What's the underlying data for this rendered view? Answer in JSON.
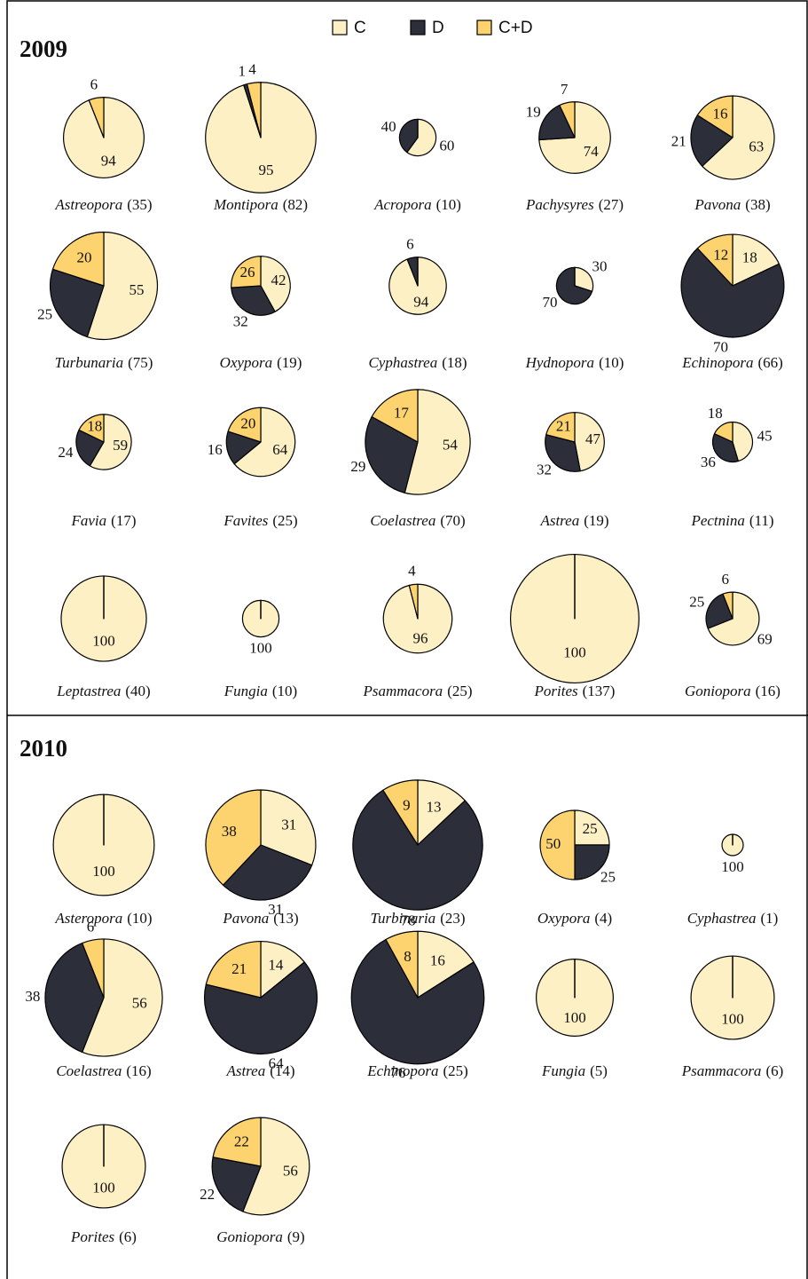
{
  "chart_data": {
    "type": "pie",
    "series_names": [
      "C",
      "D",
      "C+D"
    ],
    "colors": [
      "#fdf0c4",
      "#2c2f3a",
      "#fcd36e"
    ],
    "panels": [
      {
        "title": "2009",
        "pies": [
          {
            "title": "Astreopora",
            "n": 35,
            "n_label": "(35)",
            "values": [
              94,
              0,
              6
            ]
          },
          {
            "title": "Montipora",
            "n": 82,
            "n_label": "(82)",
            "values": [
              95,
              1,
              4
            ]
          },
          {
            "title": "Acropora",
            "n": 10,
            "n_label": "(10)",
            "values": [
              60,
              40,
              0
            ]
          },
          {
            "title": "Pachysyres",
            "n": 27,
            "n_label": "(27)",
            "values": [
              74,
              19,
              7
            ]
          },
          {
            "title": "Pavona",
            "n": 38,
            "n_label": "(38)",
            "values": [
              63,
              21,
              16
            ]
          },
          {
            "title": "Turbunaria",
            "n": 75,
            "n_label": "(75)",
            "values": [
              55,
              25,
              20
            ]
          },
          {
            "title": "Oxypora",
            "n": 19,
            "n_label": "(19)",
            "values": [
              42,
              32,
              26
            ]
          },
          {
            "title": "Cyphastrea",
            "n": 18,
            "n_label": "(18)",
            "values": [
              94,
              6,
              0
            ]
          },
          {
            "title": "Hydnopora",
            "n": 10,
            "n_label": "(10)",
            "values": [
              30,
              70,
              0
            ]
          },
          {
            "title": "Echinopora",
            "n": 66,
            "n_label": "(66)",
            "values": [
              18,
              70,
              12
            ]
          },
          {
            "title": "Favia",
            "n": 17,
            "n_label": "(17)",
            "values": [
              59,
              24,
              18
            ]
          },
          {
            "title": "Favites",
            "n": 25,
            "n_label": "(25)",
            "values": [
              64,
              16,
              20
            ]
          },
          {
            "title": "Coelastrea",
            "n": 70,
            "n_label": "(70)",
            "values": [
              54,
              29,
              17
            ]
          },
          {
            "title": "Astrea",
            "n": 19,
            "n_label": "(19)",
            "values": [
              47,
              32,
              21
            ]
          },
          {
            "title": "Pectnina",
            "n": 11,
            "n_label": "(11)",
            "values": [
              45,
              36,
              18
            ]
          },
          {
            "title": "Leptastrea",
            "n": 40,
            "n_label": "(40)",
            "values": [
              100,
              0,
              0
            ]
          },
          {
            "title": "Fungia",
            "n": 10,
            "n_label": "(10)",
            "values": [
              100,
              0,
              0
            ]
          },
          {
            "title": "Psammacora",
            "n": 25,
            "n_label": "(25)",
            "values": [
              96,
              0,
              4
            ]
          },
          {
            "title": "Porites",
            "n": 137,
            "n_label": "(137)",
            "values": [
              100,
              0,
              0
            ]
          },
          {
            "title": "Goniopora",
            "n": 16,
            "n_label": "(16)",
            "values": [
              69,
              25,
              6
            ]
          }
        ]
      },
      {
        "title": "2010",
        "pies": [
          {
            "title": "Asteropora",
            "n": 10,
            "n_label": "(10)",
            "values": [
              100,
              0,
              0
            ]
          },
          {
            "title": "Pavona",
            "n": 13,
            "n_label": "(13)",
            "values": [
              31,
              31,
              38
            ]
          },
          {
            "title": "Turbinaria",
            "n": 23,
            "n_label": "(23)",
            "values": [
              13,
              78,
              9
            ]
          },
          {
            "title": "Oxypora",
            "n": 4,
            "n_label": "(4)",
            "values": [
              25,
              25,
              50
            ]
          },
          {
            "title": "Cyphastrea",
            "n": 1,
            "n_label": "(1)",
            "values": [
              100,
              0,
              0
            ]
          },
          {
            "title": "Coelastrea",
            "n": 16,
            "n_label": "(16)",
            "values": [
              56,
              38,
              6
            ]
          },
          {
            "title": "Astrea",
            "n": 14,
            "n_label": "(14)",
            "values": [
              14,
              64,
              21
            ]
          },
          {
            "title": "Echinopora",
            "n": 25,
            "n_label": "(25)",
            "values": [
              16,
              76,
              8
            ]
          },
          {
            "title": "Fungia",
            "n": 5,
            "n_label": "(5)",
            "values": [
              100,
              0,
              0
            ]
          },
          {
            "title": "Psammacora",
            "n": 6,
            "n_label": "(6)",
            "values": [
              100,
              0,
              0
            ]
          },
          {
            "title": "Porites",
            "n": 6,
            "n_label": "(6)",
            "values": [
              100,
              0,
              0
            ]
          },
          {
            "title": "Goniopora",
            "n": 9,
            "n_label": "(9)",
            "values": [
              56,
              22,
              22
            ]
          }
        ]
      }
    ]
  }
}
